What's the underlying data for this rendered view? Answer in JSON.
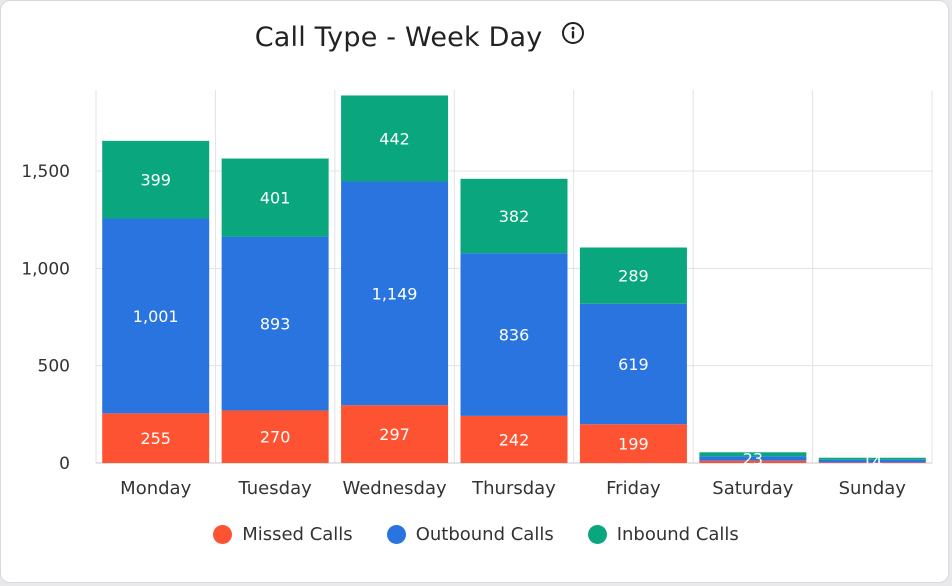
{
  "card": {
    "title": "Call Type - Week Day",
    "info_icon": "info-circle-icon"
  },
  "chart_data": {
    "type": "bar",
    "stacked": true,
    "title": "Call Type - Week Day",
    "xlabel": "",
    "ylabel": "",
    "categories": [
      "Monday",
      "Tuesday",
      "Wednesday",
      "Thursday",
      "Friday",
      "Saturday",
      "Sunday"
    ],
    "series": [
      {
        "name": "Missed Calls",
        "color": "#fe5332",
        "values": [
          255,
          270,
          297,
          242,
          199,
          12,
          3
        ],
        "labels": [
          "255",
          "270",
          "297",
          "242",
          "199",
          "",
          ""
        ]
      },
      {
        "name": "Outbound Calls",
        "color": "#2a74e0",
        "values": [
          1001,
          893,
          1149,
          836,
          619,
          23,
          14
        ],
        "labels": [
          "1,001",
          "893",
          "1,149",
          "836",
          "619",
          "23",
          "14"
        ]
      },
      {
        "name": "Inbound Calls",
        "color": "#0aa77e",
        "values": [
          399,
          401,
          442,
          382,
          289,
          20,
          10
        ],
        "labels": [
          "399",
          "401",
          "442",
          "382",
          "289",
          "",
          ""
        ]
      }
    ],
    "yticks": [
      0,
      500,
      1000,
      1500
    ],
    "ytick_labels": [
      "0",
      "500",
      "1,000",
      "1,500"
    ],
    "ylim": [
      0,
      1900
    ],
    "grid": true,
    "legend_position": "bottom"
  }
}
